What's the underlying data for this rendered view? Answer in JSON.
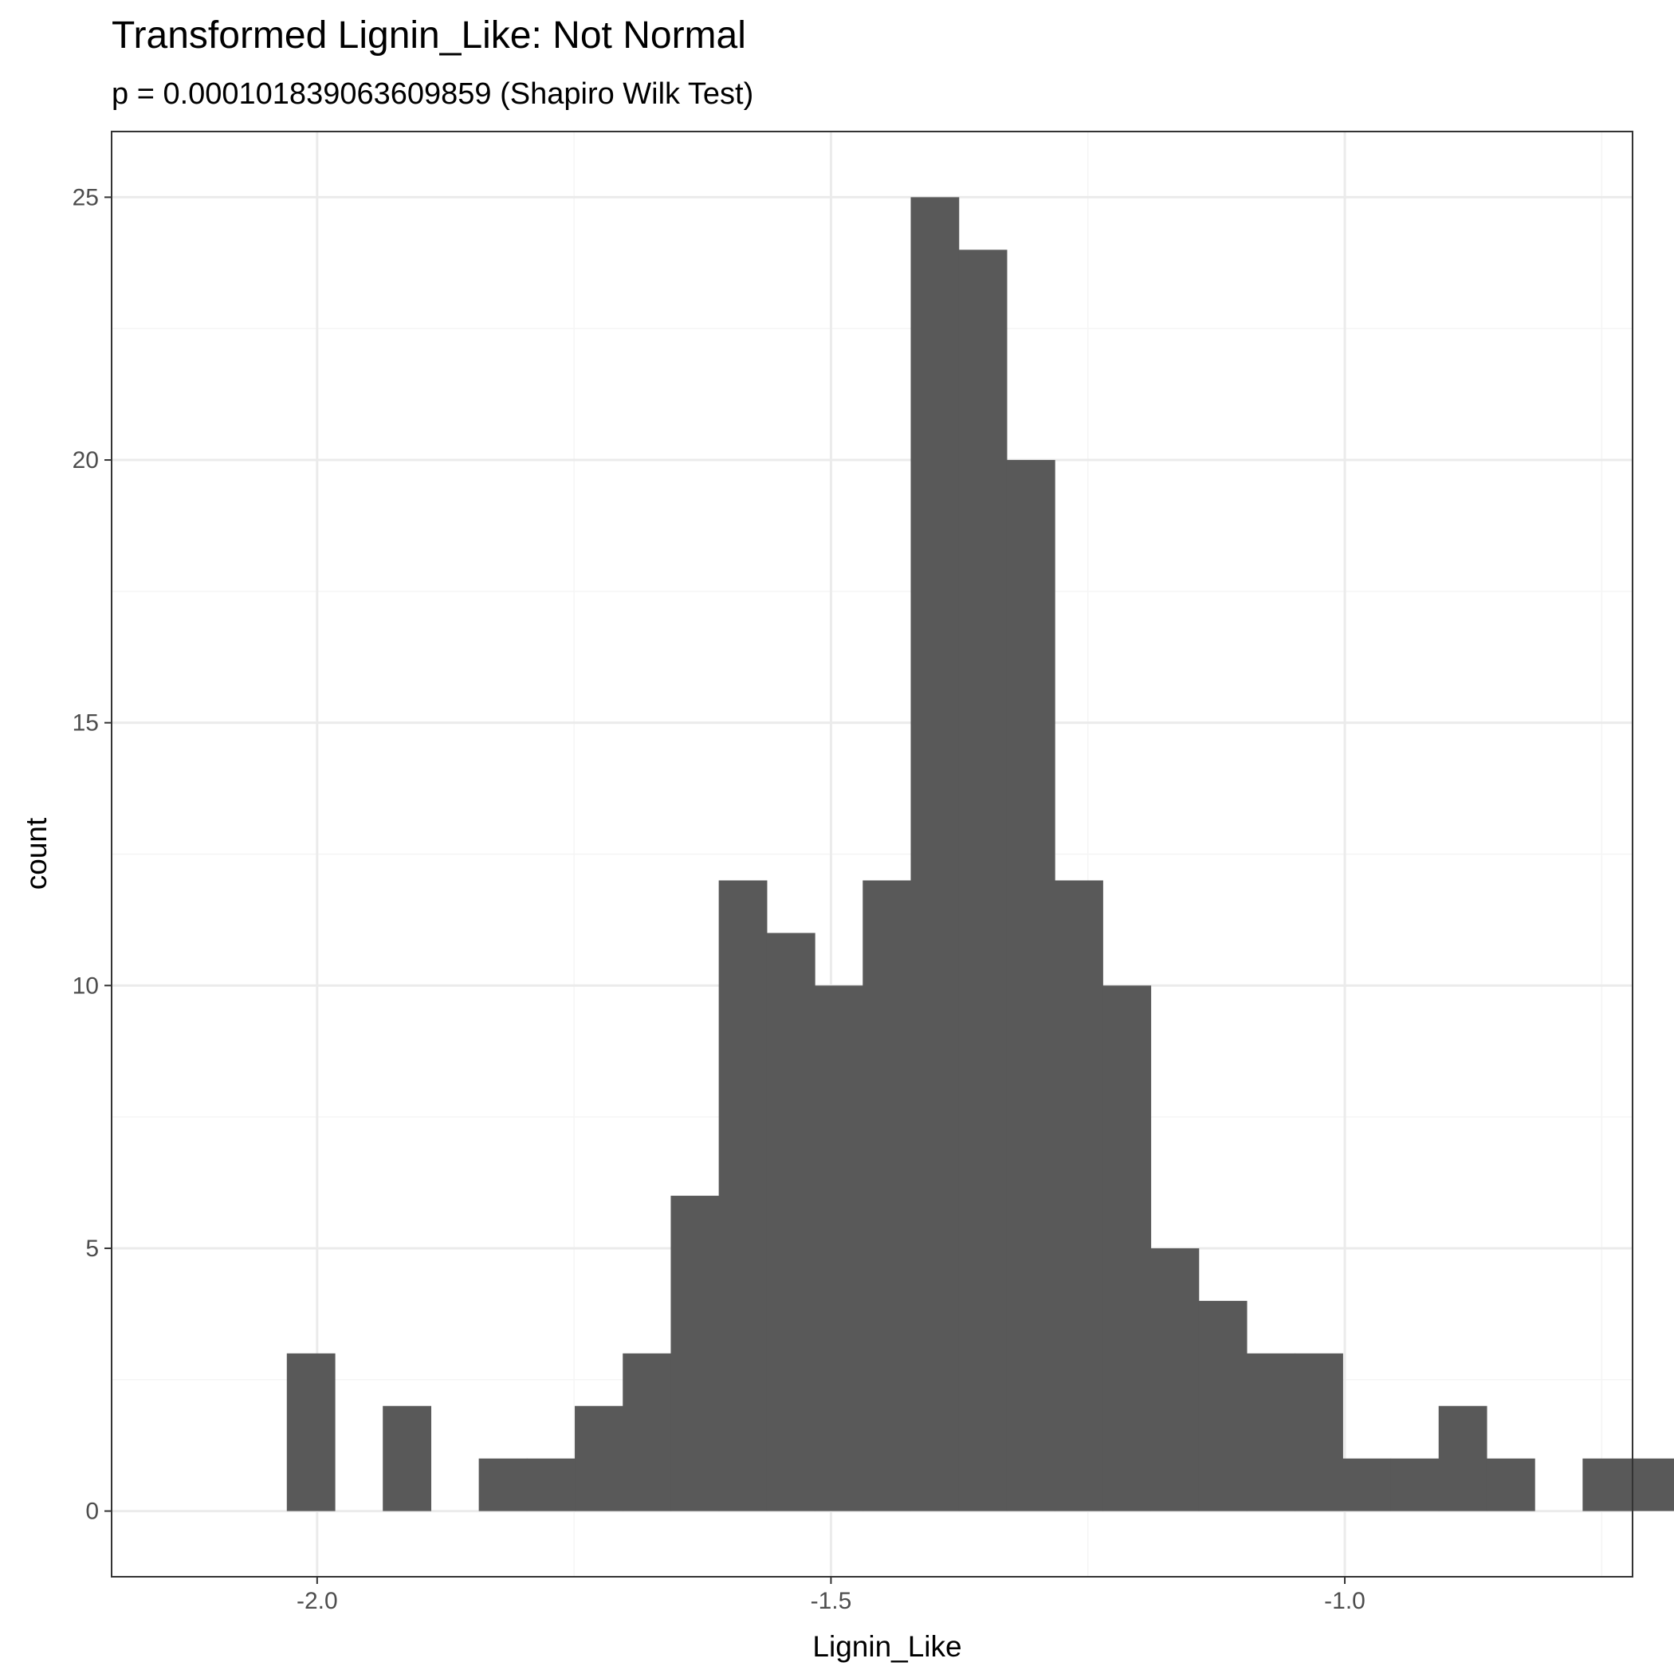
{
  "chart_data": {
    "type": "bar",
    "title": "Transformed Lignin_Like: Not Normal",
    "subtitle": "p = 0.000101839063609859 (Shapiro Wilk Test)",
    "xlabel": "Lignin_Like",
    "ylabel": "count",
    "xlim": [
      -2.2,
      -0.72
    ],
    "ylim": [
      -1.25,
      26.25
    ],
    "x_ticks": [
      -2.0,
      -1.5,
      -1.0
    ],
    "x_tick_labels": [
      "-2.0",
      "-1.5",
      "-1.0"
    ],
    "y_ticks": [
      0,
      5,
      10,
      15,
      20,
      25
    ],
    "y_tick_labels": [
      "0",
      "5",
      "10",
      "15",
      "20",
      "25"
    ],
    "x_minor_ticks": [
      -1.75,
      -1.25,
      -0.75
    ],
    "y_minor_ticks": [
      2.5,
      7.5,
      12.5,
      17.5,
      22.5
    ],
    "grid": true,
    "bin_width": 0.0467,
    "bins": [
      {
        "start": -2.0295,
        "count": 3
      },
      {
        "start": -1.9828,
        "count": 0
      },
      {
        "start": -1.9361,
        "count": 2
      },
      {
        "start": -1.8894,
        "count": 0
      },
      {
        "start": -1.8427,
        "count": 1
      },
      {
        "start": -1.796,
        "count": 1
      },
      {
        "start": -1.7493,
        "count": 2
      },
      {
        "start": -1.7026,
        "count": 3
      },
      {
        "start": -1.6559,
        "count": 6
      },
      {
        "start": -1.6092,
        "count": 12
      },
      {
        "start": -1.5625,
        "count": 11
      },
      {
        "start": -1.5158,
        "count": 10
      },
      {
        "start": -1.4691,
        "count": 12
      },
      {
        "start": -1.4224,
        "count": 25
      },
      {
        "start": -1.3757,
        "count": 24
      },
      {
        "start": -1.329,
        "count": 20
      },
      {
        "start": -1.2823,
        "count": 12
      },
      {
        "start": -1.2356,
        "count": 10
      },
      {
        "start": -1.1889,
        "count": 5
      },
      {
        "start": -1.1422,
        "count": 4
      },
      {
        "start": -1.0955,
        "count": 3
      },
      {
        "start": -1.0488,
        "count": 3
      },
      {
        "start": -1.0021,
        "count": 1
      },
      {
        "start": -0.9554,
        "count": 1
      },
      {
        "start": -0.9087,
        "count": 2
      },
      {
        "start": -0.862,
        "count": 1
      },
      {
        "start": -0.8153,
        "count": 0
      },
      {
        "start": -0.7686,
        "count": 1
      },
      {
        "start": -0.7219,
        "count": 1
      }
    ],
    "colors": {
      "bar": "#595959",
      "panel_border": "#333333",
      "grid_major": "#ebebeb",
      "grid_minor": "#f5f5f5",
      "tick_label": "#4d4d4d"
    }
  }
}
